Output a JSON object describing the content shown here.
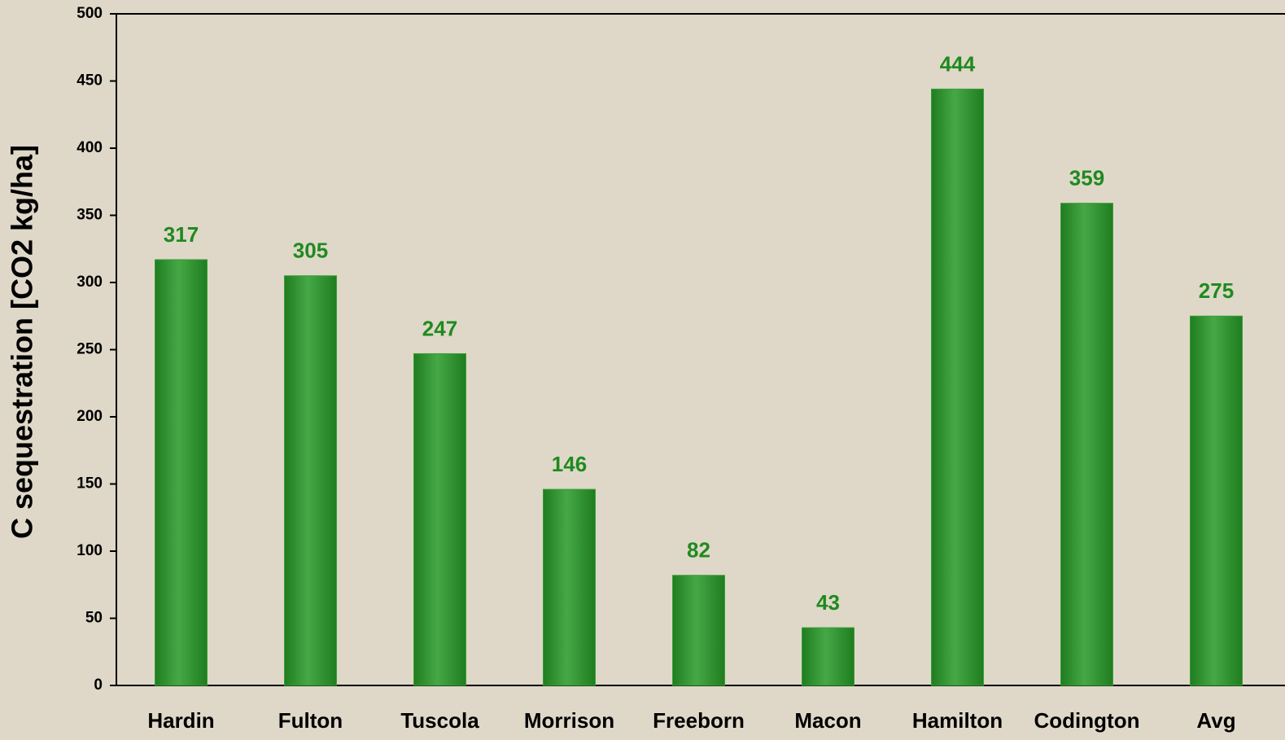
{
  "chart_data": {
    "type": "bar",
    "y_label": "C sequestration [CO2 kg/ha]",
    "categories": [
      "Hardin",
      "Fulton",
      "Tuscola",
      "Morrison",
      "Freeborn",
      "Macon",
      "Hamilton",
      "Codington",
      "Avg"
    ],
    "values": [
      317,
      305,
      247,
      146,
      82,
      43,
      444,
      359,
      275
    ],
    "color": "#3a9e3a",
    "ylim": [
      0,
      500
    ],
    "yticks": [
      0,
      50,
      100,
      150,
      200,
      250,
      300,
      350,
      400,
      450,
      500
    ],
    "grid": false
  }
}
